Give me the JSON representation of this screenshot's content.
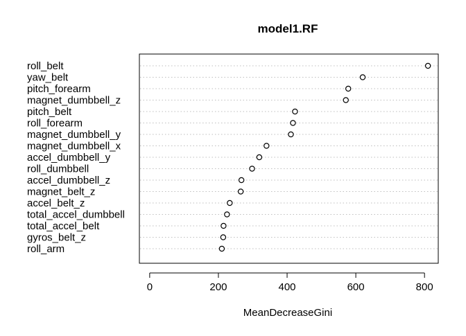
{
  "chart_data": {
    "type": "scatter",
    "subtype": "dotchart",
    "title": "model1.RF",
    "xlabel": "MeanDecreaseGini",
    "ylabel": "",
    "xlim": [
      -30,
      840
    ],
    "xticks": [
      0,
      200,
      400,
      600,
      800
    ],
    "grid": "dotted horizontal guide lines per category",
    "legend": "none",
    "categories": [
      "roll_belt",
      "yaw_belt",
      "pitch_forearm",
      "magnet_dumbbell_z",
      "pitch_belt",
      "roll_forearm",
      "magnet_dumbbell_y",
      "magnet_dumbbell_x",
      "accel_dumbbell_y",
      "roll_dumbbell",
      "accel_dumbbell_z",
      "magnet_belt_z",
      "accel_belt_z",
      "total_accel_dumbbell",
      "total_accel_belt",
      "gyros_belt_z",
      "roll_arm"
    ],
    "values": [
      810,
      620,
      578,
      571,
      423,
      417,
      411,
      340,
      319,
      298,
      267,
      265,
      233,
      225,
      215,
      214,
      210
    ],
    "marker_color": "#000000",
    "guide_color": "#bebebe"
  }
}
